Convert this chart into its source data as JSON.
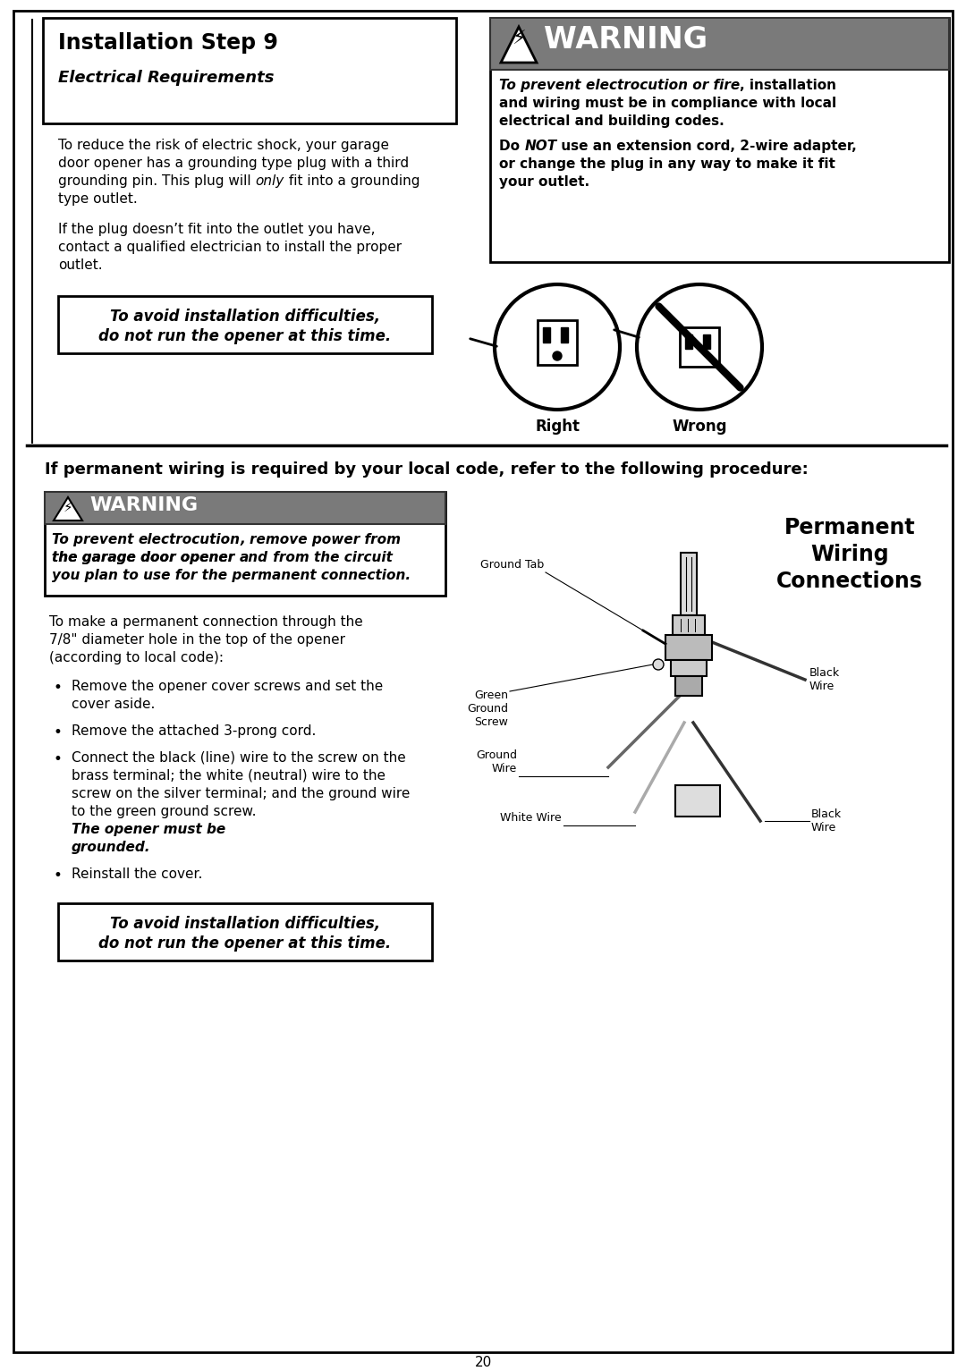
{
  "page_bg": "#ffffff",
  "title1": "Installation Step 9",
  "title2": "Electrical Requirements",
  "para1_parts": [
    [
      "To reduce the risk of electric shock, your garage",
      false
    ],
    [
      "door opener has a grounding type plug with a third",
      false
    ],
    [
      "grounding pin. This plug will ",
      false,
      "only",
      true,
      " fit into a grounding",
      false
    ],
    [
      "type outlet.",
      false
    ]
  ],
  "para2": [
    "If the plug doesn’t fit into the outlet you have,",
    "contact a qualified electrician to install the proper",
    "outlet."
  ],
  "caution1_l1": "To avoid installation difficulties,",
  "caution1_l2": "do not run the opener at this time.",
  "warn1_header": "WARNING",
  "warn1_body": [
    [
      "To prevent ",
      true,
      "electrocution or fire",
      true,
      ", installation",
      false
    ],
    [
      "and wiring must be in compliance with local",
      false
    ],
    [
      "electrical and building codes.",
      false
    ],
    [
      "Do ",
      false,
      "NOT",
      true,
      " use an extension cord, 2-wire adapter,",
      false
    ],
    [
      "or change the plug in any way to make it fit",
      false
    ],
    [
      "your outlet.",
      false
    ]
  ],
  "right_label": "Right",
  "wrong_label": "Wrong",
  "separator": "If permanent wiring is required by your local code, refer to the following procedure:",
  "warn2_header": "WARNING",
  "warn2_body": [
    [
      "To prevent ",
      true,
      "electrocution",
      true,
      ", remove power from",
      true
    ],
    [
      "the garage door opener ",
      true,
      "and",
      true,
      " from the circuit",
      true
    ],
    [
      "you plan to use for the permanent connection.",
      true
    ]
  ],
  "intro": [
    "To make a permanent connection through the",
    "7/8\" diameter hole in the top of the opener",
    "(according to local code):"
  ],
  "bullet1": [
    "Remove the opener cover screws and set the",
    "cover aside."
  ],
  "bullet2": [
    "Remove the attached 3-prong cord."
  ],
  "bullet3_normal": [
    "Connect the black (line) wire to the screw on the",
    "brass terminal; the white (neutral) wire to the",
    "screw on the silver terminal; and the ground wire",
    "to the green ground screw. "
  ],
  "bullet3_italic": [
    "The opener must be",
    "grounded."
  ],
  "bullet4": [
    "Reinstall the cover."
  ],
  "caution2_l1": "To avoid installation difficulties,",
  "caution2_l2": "do not run the opener at this time.",
  "perm_title": [
    "Permanent",
    "Wiring",
    "Connections"
  ],
  "diag_labels": {
    "ground_tab": "Ground Tab",
    "green_ground_screw": "Green\nGround\nScrew",
    "ground_wire": "Ground\nWire",
    "black_wire_top": "Black\nWire",
    "white_wire": "White Wire",
    "black_wire_bot": "Black\nWire"
  },
  "page_num": "20",
  "warn_bg": "#7a7a7a",
  "warn_border": "#333333"
}
